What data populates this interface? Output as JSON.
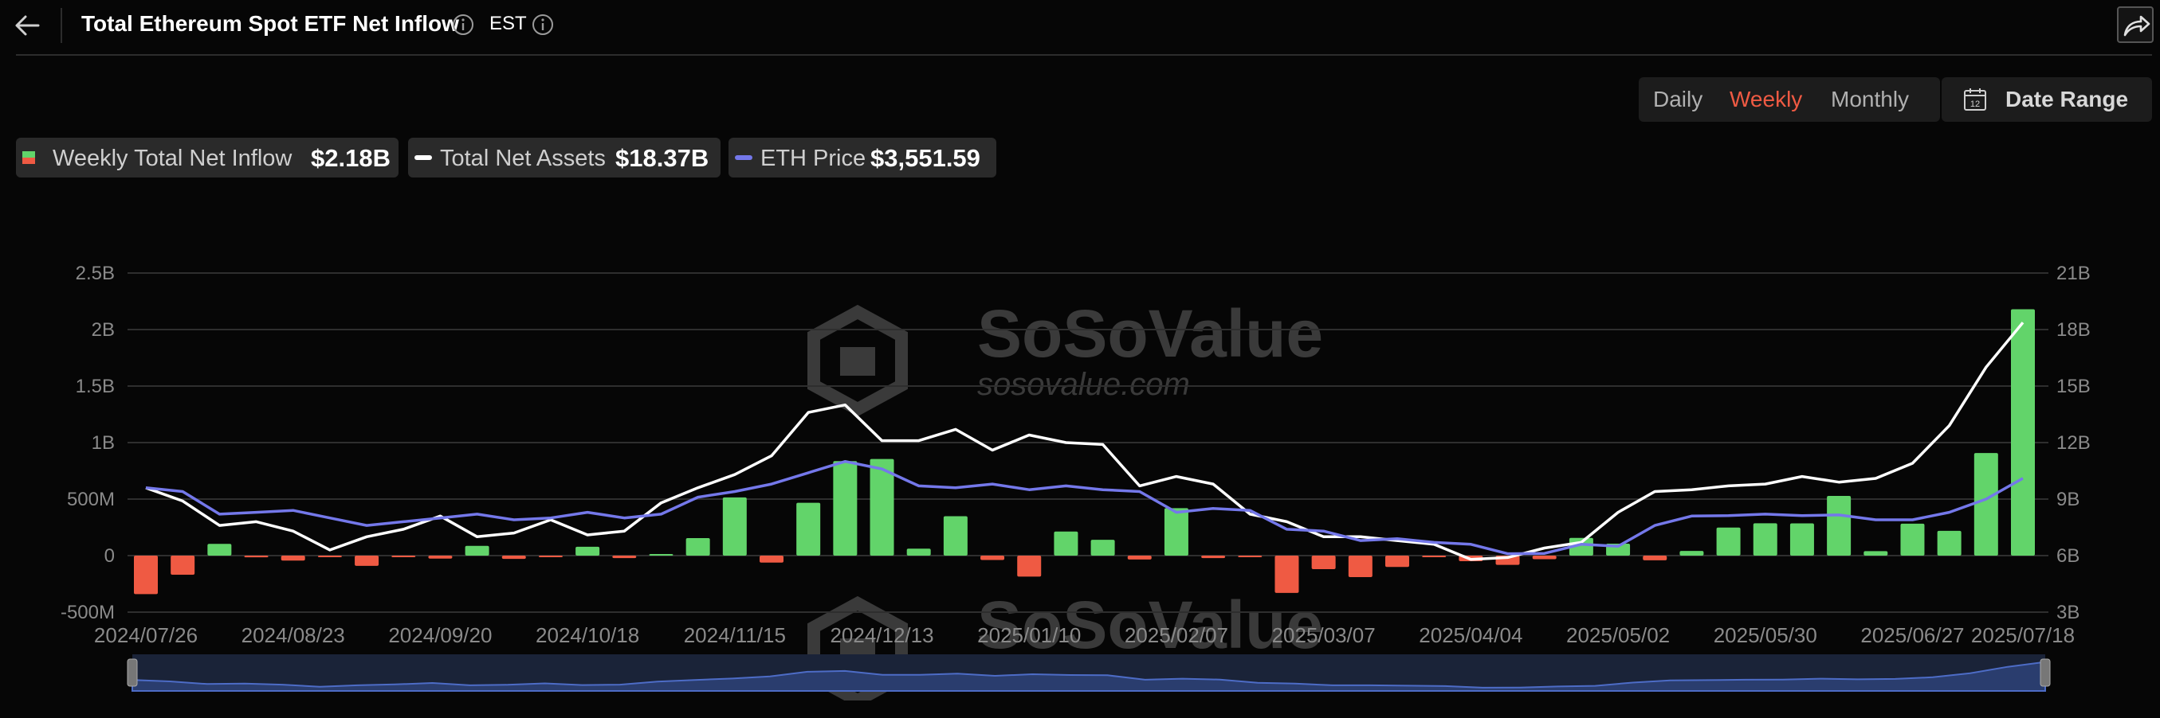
{
  "header": {
    "title": "Total Ethereum Spot ETF Net Inflow",
    "timezone": "EST",
    "icons": [
      "back-arrow-icon",
      "info-icon",
      "info-icon",
      "share-icon"
    ]
  },
  "controls": {
    "periods": [
      "Daily",
      "Weekly",
      "Monthly"
    ],
    "active_period": "Weekly",
    "date_range_label": "Date Range"
  },
  "legend": {
    "items": [
      {
        "label": "Weekly Total Net Inflow",
        "value": "$2.18B"
      },
      {
        "label": "Total Net Assets",
        "value": "$18.37B"
      },
      {
        "label": "ETH Price",
        "value": "$3,551.59"
      }
    ]
  },
  "watermark": {
    "brand": "SoSoValue",
    "url": "sosovalue.com"
  },
  "colors": {
    "background": "#060606",
    "positive_bar": "#62d46a",
    "negative_bar": "#ef5a43",
    "net_assets_line": "#ffffff",
    "eth_price_line": "#7478ea",
    "grid": "#2e2e2e",
    "active_period": "#ef5a43"
  },
  "chart_data": {
    "type": "bar",
    "x_tick_labels": [
      "2024/07/26",
      "2024/08/23",
      "2024/09/20",
      "2024/10/18",
      "2024/11/15",
      "2024/12/13",
      "2025/01/10",
      "2025/02/07",
      "2025/03/07",
      "2025/04/04",
      "2025/05/02",
      "2025/05/30",
      "2025/06/27",
      "2025/07/18"
    ],
    "categories": [
      "2024/07/26",
      "2024/08/02",
      "2024/08/09",
      "2024/08/16",
      "2024/08/23",
      "2024/08/30",
      "2024/09/06",
      "2024/09/13",
      "2024/09/20",
      "2024/09/27",
      "2024/10/04",
      "2024/10/11",
      "2024/10/18",
      "2024/10/25",
      "2024/11/01",
      "2024/11/08",
      "2024/11/15",
      "2024/11/22",
      "2024/11/29",
      "2024/12/06",
      "2024/12/13",
      "2024/12/20",
      "2024/12/27",
      "2025/01/03",
      "2025/01/10",
      "2025/01/17",
      "2025/01/24",
      "2025/01/31",
      "2025/02/07",
      "2025/02/14",
      "2025/02/21",
      "2025/02/28",
      "2025/03/07",
      "2025/03/14",
      "2025/03/21",
      "2025/03/28",
      "2025/04/04",
      "2025/04/11",
      "2025/04/18",
      "2025/04/25",
      "2025/05/02",
      "2025/05/09",
      "2025/05/16",
      "2025/05/23",
      "2025/05/30",
      "2025/06/06",
      "2025/06/13",
      "2025/06/20",
      "2025/06/27",
      "2025/07/03",
      "2025/07/11",
      "2025/07/18"
    ],
    "left_axis": {
      "ticks": [
        "-500M",
        "0",
        "500M",
        "1B",
        "1.5B",
        "2B",
        "2.5B"
      ],
      "ylim": [
        -500000000,
        2500000000
      ]
    },
    "right_axis": {
      "ticks": [
        "3B",
        "6B",
        "9B",
        "12B",
        "15B",
        "18B",
        "21B"
      ],
      "ylim": [
        3000000000,
        21000000000
      ]
    },
    "grid": true,
    "series": [
      {
        "name": "Weekly Total Net Inflow",
        "kind": "bar",
        "axis": "left",
        "unit": "USD",
        "values": [
          -341000000,
          -169000000,
          104000000,
          -15000000,
          -44000000,
          -6000000,
          -91000000,
          -5000000,
          -26000000,
          86000000,
          -29000000,
          -1000000,
          78000000,
          -22000000,
          8000000,
          155000000,
          515000000,
          -62000000,
          467000000,
          836000000,
          855000000,
          62000000,
          349000000,
          -39000000,
          -186000000,
          213000000,
          140000000,
          -34000000,
          420000000,
          -22000000,
          -4000000,
          -330000000,
          -120000000,
          -190000000,
          -100000000,
          -4000000,
          -49000000,
          -82000000,
          -32000000,
          157000000,
          106000000,
          -41000000,
          41000000,
          248000000,
          286000000,
          285000000,
          528000000,
          40000000,
          283000000,
          219000000,
          908000000,
          2180000000
        ]
      },
      {
        "name": "Total Net Assets",
        "kind": "line",
        "axis": "right",
        "unit": "USD",
        "values": [
          9600000000,
          8900000000,
          7600000000,
          7800000000,
          7300000000,
          6300000000,
          7000000000,
          7400000000,
          8100000000,
          7000000000,
          7200000000,
          7900000000,
          7100000000,
          7300000000,
          8800000000,
          9600000000,
          10300000000,
          11300000000,
          13600000000,
          14000000000,
          12100000000,
          12100000000,
          12700000000,
          11600000000,
          12400000000,
          12000000000,
          11900000000,
          9700000000,
          10200000000,
          9800000000,
          8200000000,
          7800000000,
          7000000000,
          7000000000,
          6800000000,
          6600000000,
          5800000000,
          5900000000,
          6400000000,
          6700000000,
          8300000000,
          9400000000,
          9500000000,
          9700000000,
          9800000000,
          10200000000,
          9900000000,
          10100000000,
          10900000000,
          12900000000,
          16000000000,
          18370000000
        ]
      },
      {
        "name": "ETH Price",
        "kind": "line",
        "axis": "right",
        "unit": "USD",
        "values": [
          3300,
          3200,
          2600,
          2650,
          2700,
          2500,
          2300,
          2400,
          2500,
          2600,
          2450,
          2500,
          2650,
          2500,
          2600,
          3050,
          3200,
          3400,
          3700,
          4000,
          3800,
          3350,
          3300,
          3400,
          3250,
          3350,
          3250,
          3200,
          2650,
          2750,
          2700,
          2200,
          2150,
          1900,
          1950,
          1850,
          1800,
          1550,
          1560,
          1800,
          1750,
          2300,
          2550,
          2560,
          2600,
          2560,
          2580,
          2450,
          2450,
          2650,
          3000,
          3551.59
        ]
      }
    ]
  }
}
